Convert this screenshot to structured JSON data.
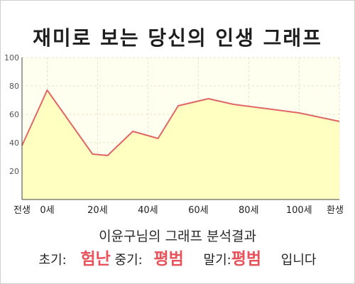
{
  "title": "재미로 보는 당신의 인생 그래프",
  "chart_data": {
    "type": "area",
    "title": "재미로 보는 당신의 인생 그래프",
    "x_ticks": [
      {
        "label": "전생",
        "pos": -10
      },
      {
        "label": "0세",
        "pos": 0
      },
      {
        "label": "20세",
        "pos": 20
      },
      {
        "label": "40세",
        "pos": 40
      },
      {
        "label": "60세",
        "pos": 60
      },
      {
        "label": "80세",
        "pos": 80
      },
      {
        "label": "100세",
        "pos": 100
      },
      {
        "label": "환생",
        "pos": 116
      }
    ],
    "xlim": [
      -10,
      116
    ],
    "y_ticks": [
      20,
      40,
      60,
      80,
      100
    ],
    "ylim": [
      0,
      100
    ],
    "grid": true,
    "points": [
      {
        "x": -10,
        "y": 38
      },
      {
        "x": 0,
        "y": 77
      },
      {
        "x": 18,
        "y": 32
      },
      {
        "x": 24,
        "y": 31
      },
      {
        "x": 34,
        "y": 48
      },
      {
        "x": 44,
        "y": 43
      },
      {
        "x": 52,
        "y": 66
      },
      {
        "x": 64,
        "y": 71
      },
      {
        "x": 74,
        "y": 67
      },
      {
        "x": 100,
        "y": 61
      },
      {
        "x": 116,
        "y": 55
      }
    ],
    "colors": {
      "line": "#e06666",
      "fill": "#ffffc2",
      "background": "#fffff0",
      "grid": "#e4e4c8"
    }
  },
  "result": {
    "caption": "이윤구님의 그래프 분석결과",
    "early_label": "초기:",
    "early_value": "험난",
    "mid_label": "중기:",
    "mid_value": "평범",
    "late_label": "말기:",
    "late_value": "평범",
    "suffix": "입니다"
  }
}
